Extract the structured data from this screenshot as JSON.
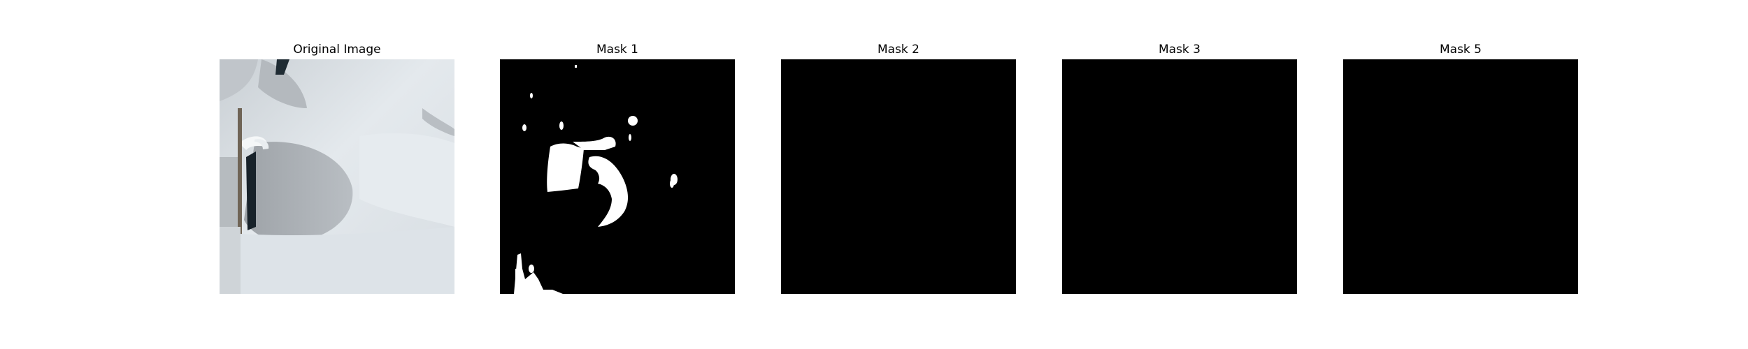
{
  "figure": {
    "panels": [
      {
        "title": "Original Image",
        "content": "photo"
      },
      {
        "title": "Mask 1",
        "content": "mask"
      },
      {
        "title": "Mask 2",
        "content": "blank-mask"
      },
      {
        "title": "Mask 3",
        "content": "blank-mask"
      },
      {
        "title": "Mask 5",
        "content": "blank-mask"
      }
    ]
  },
  "colors": {
    "background": "#ffffff",
    "mask_background": "#000000",
    "mask_foreground": "#ffffff",
    "photo_light": "#dfe5ea",
    "photo_shadow": "#aeb3b8",
    "photo_dark": "#1f2b33"
  }
}
